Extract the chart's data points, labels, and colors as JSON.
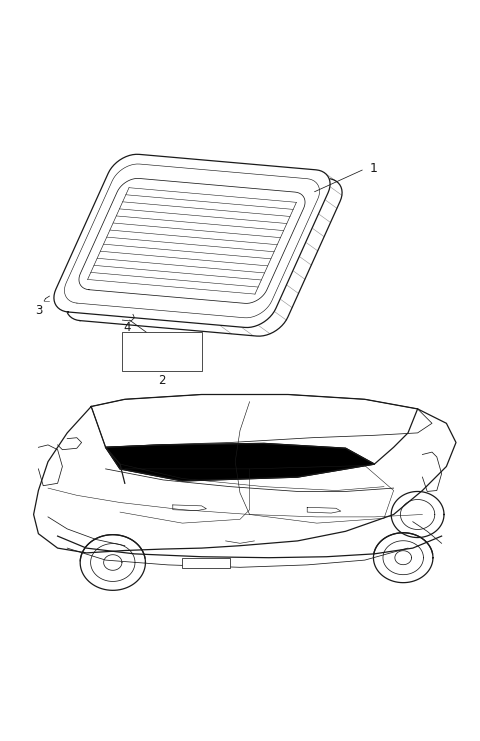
{
  "bg_color": "#ffffff",
  "line_color": "#1a1a1a",
  "fig_width": 4.8,
  "fig_height": 7.41,
  "dpi": 100
}
